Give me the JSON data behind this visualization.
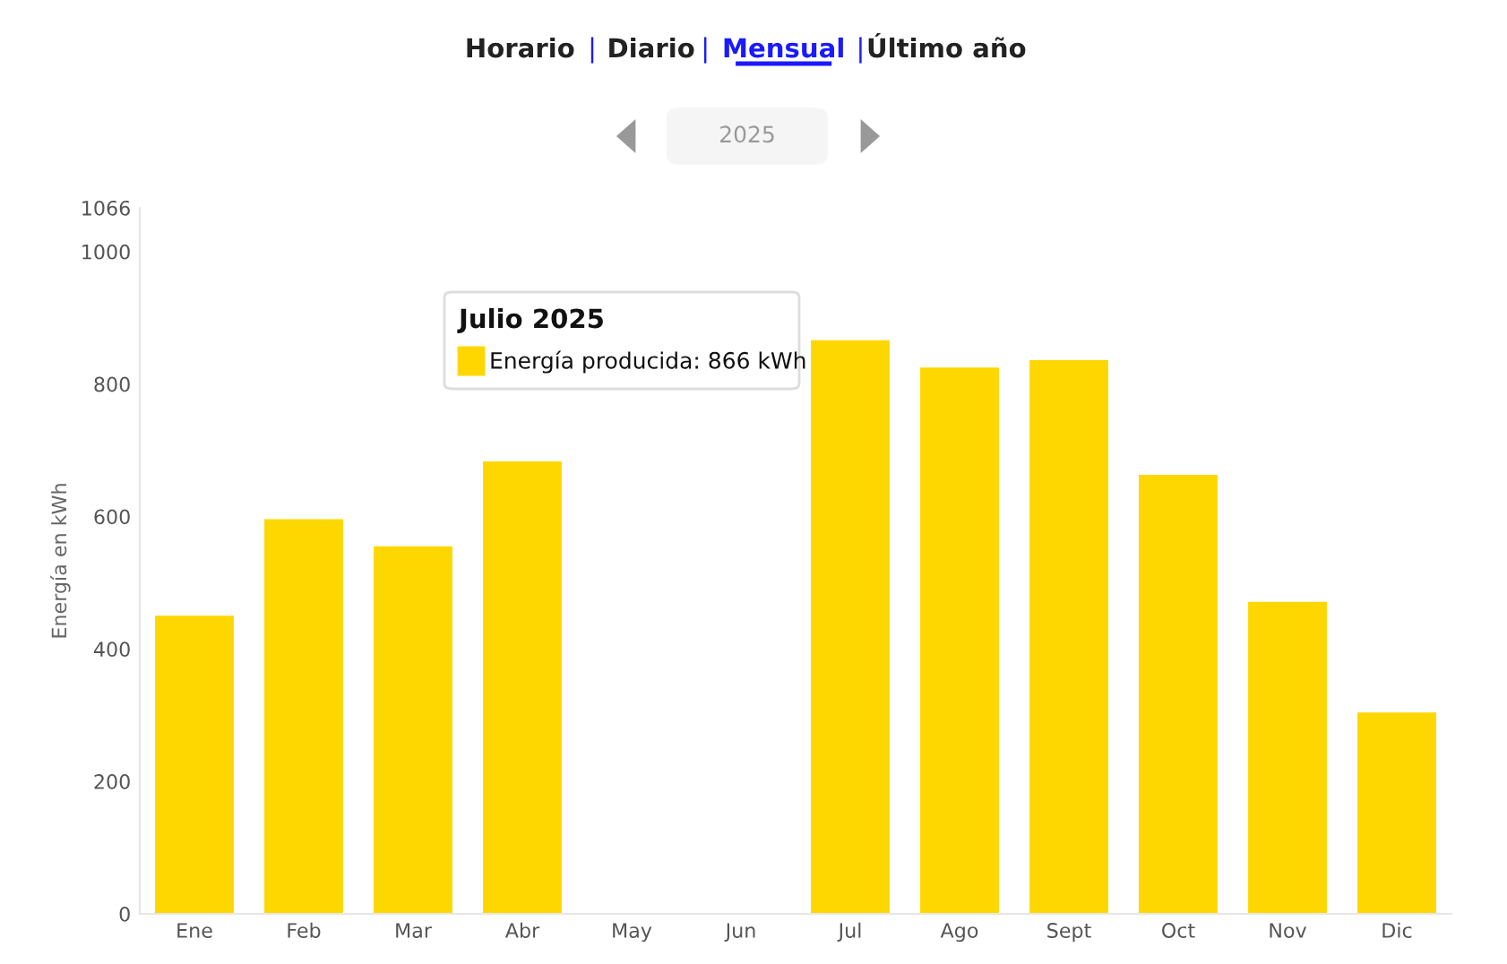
{
  "chart_data": {
    "type": "bar",
    "categories": [
      "Ene",
      "Feb",
      "Mar",
      "Abr",
      "May",
      "Jun",
      "Jul",
      "Ago",
      "Sept",
      "Oct",
      "Nov",
      "Dic"
    ],
    "values": [
      450,
      596,
      555,
      683,
      null,
      null,
      866,
      825,
      836,
      663,
      471,
      304
    ],
    "color": "#ffd700",
    "ylabel": "Energía en kWh",
    "ylim": [
      0,
      1066
    ],
    "yticks": [
      0,
      200,
      400,
      600,
      800,
      1000,
      1066
    ],
    "grid": false,
    "annotations": [
      "Horario",
      "|",
      "Diario",
      "|",
      "Mensual",
      "|",
      "Último año",
      "2025",
      "Julio 2025",
      "Energía producida: 866 kWh"
    ]
  }
}
